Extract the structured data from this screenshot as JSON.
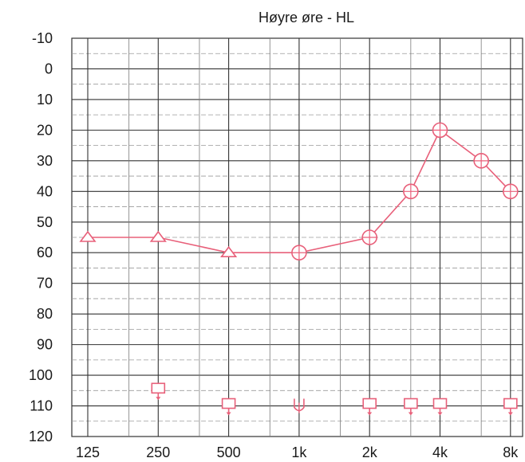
{
  "chart_data": {
    "type": "line",
    "title": "Høyre øre - HL",
    "xlabel": "",
    "ylabel": "",
    "x_ticks": [
      "125",
      "250",
      "500",
      "1k",
      "2k",
      "4k",
      "8k"
    ],
    "y_ticks": [
      -10,
      0,
      10,
      20,
      30,
      40,
      50,
      60,
      70,
      80,
      90,
      100,
      110,
      120
    ],
    "ylim": [
      -10,
      120
    ],
    "y_inverted": true,
    "grid": true,
    "colors": {
      "series": "#e8607a",
      "grid": "#333333",
      "text": "#1a1a1a"
    },
    "series": [
      {
        "marker": "circle/triangle",
        "line": true,
        "points": [
          {
            "freq": 125,
            "db": 55,
            "marker": "triangle"
          },
          {
            "freq": 250,
            "db": 55,
            "marker": "triangle"
          },
          {
            "freq": 500,
            "db": 60,
            "marker": "triangle"
          },
          {
            "freq": 1000,
            "db": 60,
            "marker": "circle"
          },
          {
            "freq": 2000,
            "db": 55,
            "marker": "circle"
          },
          {
            "freq": 3000,
            "db": 40,
            "marker": "circle"
          },
          {
            "freq": 4000,
            "db": 20,
            "marker": "circle"
          },
          {
            "freq": 6000,
            "db": 30,
            "marker": "circle"
          },
          {
            "freq": 8000,
            "db": 40,
            "marker": "circle"
          }
        ]
      },
      {
        "marker": "bracket-arrow",
        "line": false,
        "points": [
          {
            "freq": 250,
            "db": 105,
            "marker": "square-arrow"
          },
          {
            "freq": 500,
            "db": 110,
            "marker": "square-arrow"
          },
          {
            "freq": 1000,
            "db": 110,
            "marker": "u"
          },
          {
            "freq": 2000,
            "db": 110,
            "marker": "square-arrow"
          },
          {
            "freq": 3000,
            "db": 110,
            "marker": "square-arrow"
          },
          {
            "freq": 4000,
            "db": 110,
            "marker": "square-arrow"
          },
          {
            "freq": 8000,
            "db": 110,
            "marker": "square-arrow"
          }
        ]
      }
    ]
  }
}
